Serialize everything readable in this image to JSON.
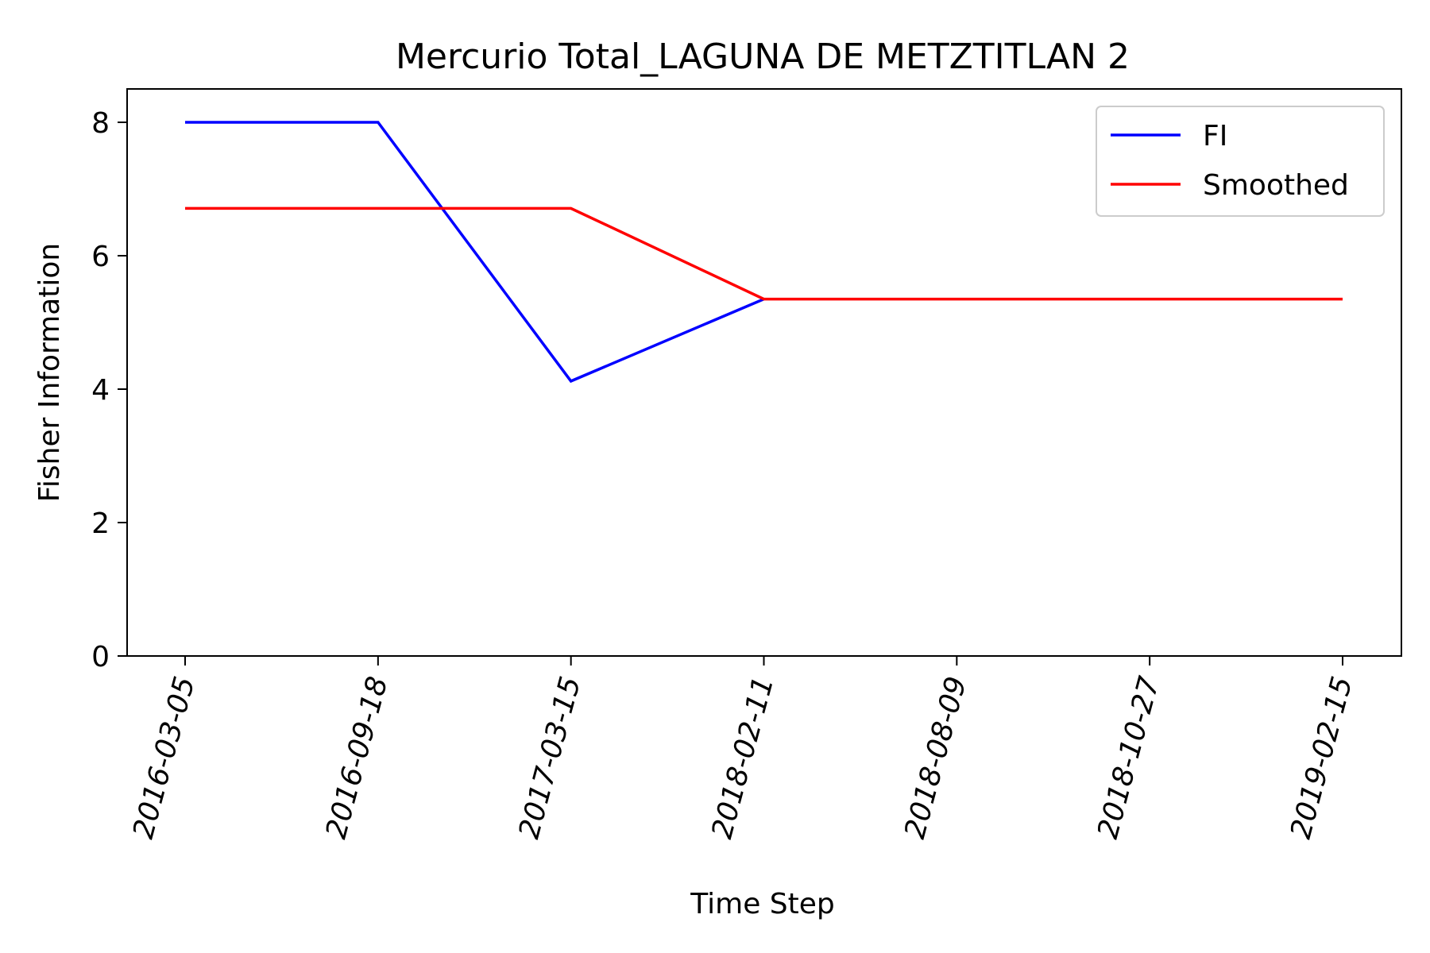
{
  "chart_data": {
    "type": "line",
    "title": "Mercurio Total_LAGUNA DE METZTITLAN 2",
    "xlabel": "Time Step",
    "ylabel": "Fisher Information",
    "categories": [
      "2016-03-05",
      "2016-09-18",
      "2017-03-15",
      "2018-02-11",
      "2018-08-09",
      "2018-10-27",
      "2019-02-15"
    ],
    "ylim": [
      0,
      8.5
    ],
    "yticks": [
      0,
      2,
      4,
      6,
      8
    ],
    "grid": false,
    "legend_position": "top-right",
    "series": [
      {
        "name": "FI",
        "color": "#0000ff",
        "values": [
          8.0,
          8.0,
          4.12,
          5.35,
          null,
          null,
          null
        ]
      },
      {
        "name": "Smoothed",
        "color": "#ff0000",
        "values": [
          6.71,
          6.71,
          6.71,
          5.35,
          5.35,
          5.35,
          5.35
        ]
      }
    ]
  }
}
